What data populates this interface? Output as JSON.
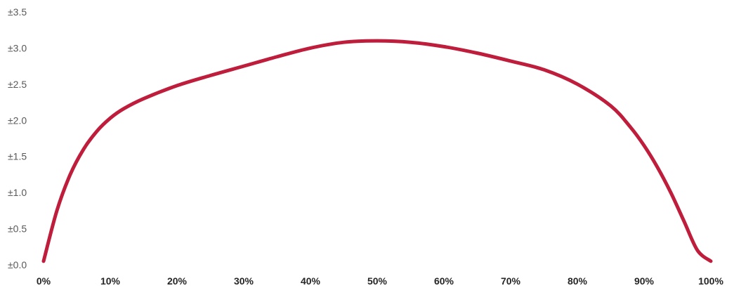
{
  "chart_data": {
    "type": "line",
    "title": "",
    "xlabel": "",
    "ylabel": "",
    "xlim": [
      0,
      100
    ],
    "ylim": [
      0,
      3.5
    ],
    "grid": false,
    "legend": "none",
    "x_tick_labels": [
      "0%",
      "10%",
      "20%",
      "30%",
      "40%",
      "50%",
      "60%",
      "70%",
      "80%",
      "90%",
      "100%"
    ],
    "y_tick_labels": [
      "±0.0",
      "±0.5",
      "±1.0",
      "±1.5",
      "±2.0",
      "±2.5",
      "±3.0",
      "±3.5"
    ],
    "series": [
      {
        "color": "#BE1E3C",
        "x": [
          0,
          2,
          4,
          6,
          8,
          10,
          12,
          15,
          20,
          25,
          30,
          35,
          40,
          45,
          50,
          55,
          60,
          65,
          70,
          75,
          80,
          85,
          88,
          90,
          92,
          94,
          96,
          98,
          100
        ],
        "values": [
          0.05,
          0.75,
          1.25,
          1.6,
          1.85,
          2.03,
          2.16,
          2.3,
          2.48,
          2.62,
          2.75,
          2.88,
          3.0,
          3.08,
          3.1,
          3.08,
          3.02,
          2.93,
          2.82,
          2.7,
          2.5,
          2.2,
          1.9,
          1.65,
          1.35,
          1.0,
          0.6,
          0.2,
          0.05
        ]
      }
    ]
  }
}
